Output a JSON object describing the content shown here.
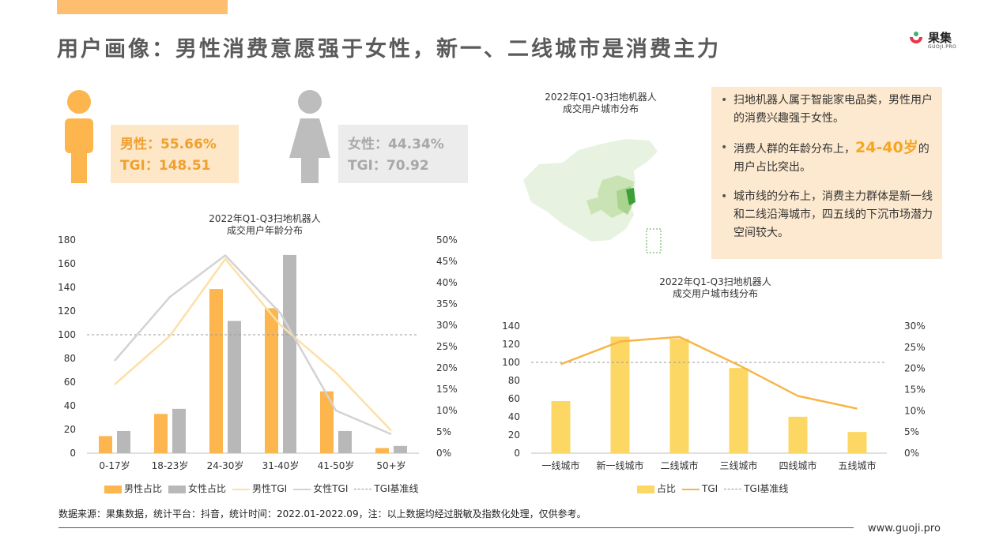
{
  "page": {
    "title": "用户画像：男性消费意愿强于女性，新一、二线城市是消费主力",
    "logo_name": "果集",
    "logo_sub": "GUOJI.PRO",
    "source_note": "数据来源：果集数据，统计平台：抖音，统计时间：2022.01-2022.09，注：以上数据均经过脱敏及指数化处理，仅供参考。",
    "website": "www.guoji.pro"
  },
  "gender": {
    "male_line1": "男性：55.66%",
    "male_line2": "TGI：148.51",
    "female_line1": "女性：44.34%",
    "female_line2": "TGI：70.92"
  },
  "map": {
    "title_line1": "2022年Q1-Q3扫地机器人",
    "title_line2": "成交用户城市分布"
  },
  "insights": {
    "b1": "扫地机器人属于智能家电品类，男性用户的消费兴趣强于女性。",
    "b2_pre": "消费人群的年龄分布上，",
    "b2_hl": "24-40岁",
    "b2_post": "的用户占比突出。",
    "b3": "城市线的分布上，消费主力群体是新一线和二线沿海城市，四五线的下沉市场潜力空间较大。"
  },
  "colors": {
    "male_bar": "#fdb54d",
    "female_bar": "#b8b8b8",
    "male_tgi": "#fde0a6",
    "female_tgi": "#d3d3d3",
    "city_bar": "#fdd764",
    "city_tgi": "#f8b545",
    "baseline": "#9a9a9a"
  },
  "chart_data": [
    {
      "type": "bar",
      "title": "2022年Q1-Q3扫地机器人\n成交用户年龄分布",
      "title_line1": "2022年Q1-Q3扫地机器人",
      "title_line2": "成交用户年龄分布",
      "categories": [
        "0-17岁",
        "18-23岁",
        "24-30岁",
        "31-40岁",
        "41-50岁",
        "50+岁"
      ],
      "series": [
        {
          "name": "男性占比",
          "kind": "bar",
          "axis": "right",
          "values": [
            4.0,
            9.2,
            38.5,
            34.0,
            14.5,
            1.2
          ]
        },
        {
          "name": "女性占比",
          "kind": "bar",
          "axis": "right",
          "values": [
            5.2,
            10.4,
            31.0,
            46.5,
            5.2,
            1.7
          ]
        },
        {
          "name": "男性TGI",
          "kind": "line",
          "axis": "left",
          "values": [
            58,
            99,
            164,
            108,
            68,
            19
          ]
        },
        {
          "name": "女性TGI",
          "kind": "line",
          "axis": "left",
          "values": [
            78,
            132,
            167,
            118,
            36,
            16
          ]
        },
        {
          "name": "TGI基准线",
          "kind": "baseline",
          "axis": "left",
          "values": [
            100,
            100,
            100,
            100,
            100,
            100
          ]
        }
      ],
      "y_left": {
        "min": 0,
        "max": 180,
        "ticks": [
          "0",
          "20",
          "40",
          "60",
          "80",
          "100",
          "120",
          "140",
          "160",
          "180"
        ]
      },
      "y_right": {
        "min": 0,
        "max": 50,
        "ticks": [
          "0%",
          "5%",
          "10%",
          "15%",
          "20%",
          "25%",
          "30%",
          "35%",
          "40%",
          "45%",
          "50%"
        ]
      },
      "legend": [
        "男性占比",
        "女性占比",
        "男性TGI",
        "女性TGI",
        "TGI基准线"
      ],
      "legend_position": "bottom"
    },
    {
      "type": "bar",
      "title": "2022年Q1-Q3扫地机器人\n成交用户城市线分布",
      "title_line1": "2022年Q1-Q3扫地机器人",
      "title_line2": "成交用户城市线分布",
      "categories": [
        "一线城市",
        "新一线城市",
        "二线城市",
        "三线城市",
        "四线城市",
        "五线城市"
      ],
      "series": [
        {
          "name": "占比",
          "kind": "bar",
          "axis": "right",
          "values": [
            12.3,
            27.5,
            27.0,
            20.1,
            8.6,
            5.0
          ]
        },
        {
          "name": "TGI",
          "kind": "line",
          "axis": "left",
          "values": [
            98,
            123,
            128,
            97,
            63,
            49
          ]
        },
        {
          "name": "TGI基准线",
          "kind": "baseline",
          "axis": "left",
          "values": [
            100,
            100,
            100,
            100,
            100,
            100
          ]
        }
      ],
      "y_left": {
        "min": 0,
        "max": 140,
        "ticks": [
          "0",
          "20",
          "40",
          "60",
          "80",
          "100",
          "120",
          "140"
        ]
      },
      "y_right": {
        "min": 0,
        "max": 30,
        "ticks": [
          "0%",
          "5%",
          "10%",
          "15%",
          "20%",
          "25%",
          "30%"
        ]
      },
      "legend": [
        "占比",
        "TGI",
        "TGI基准线"
      ],
      "legend_position": "bottom"
    }
  ]
}
